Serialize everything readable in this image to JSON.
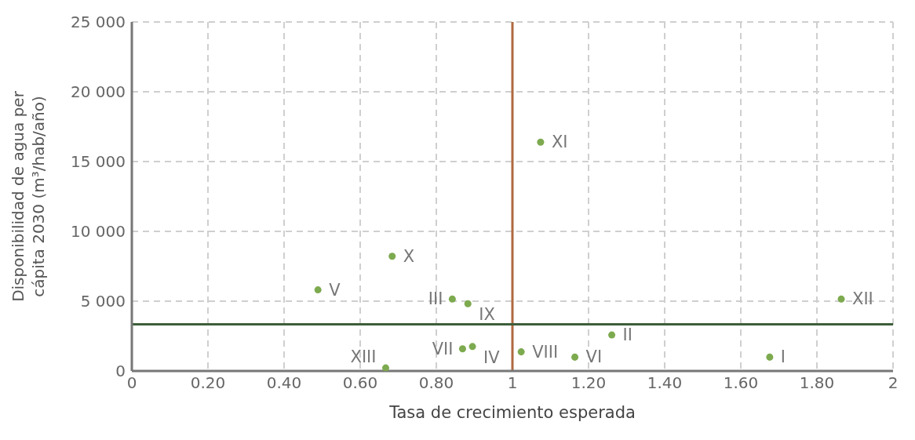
{
  "chart_data": {
    "type": "scatter",
    "xlabel": "Tasa de crecimiento esperada",
    "ylabel": "Disponibilidad de agua per cápita 2030 (m³/hab/año)",
    "x": [
      1.676,
      1.261,
      0.842,
      0.895,
      0.489,
      1.164,
      0.869,
      1.023,
      0.883,
      0.684,
      1.074,
      1.864,
      0.667
    ],
    "values": [
      990,
      2580,
      5150,
      1750,
      5810,
      990,
      1590,
      1370,
      4820,
      8220,
      16390,
      5150,
      220
    ],
    "color": "#7daa4f",
    "marker": "circle",
    "grid": true,
    "legend": false,
    "xlim": [
      0,
      2
    ],
    "xticks": [
      {
        "value": 0,
        "label": "0"
      },
      {
        "value": 0.2,
        "label": "0.20"
      },
      {
        "value": 0.4,
        "label": "0.40"
      },
      {
        "value": 0.6,
        "label": "0.60"
      },
      {
        "value": 0.8,
        "label": "0.80"
      },
      {
        "value": 1,
        "label": "1"
      },
      {
        "value": 1.2,
        "label": "1.20"
      },
      {
        "value": 1.4,
        "label": "1.40"
      },
      {
        "value": 1.6,
        "label": "1.60"
      },
      {
        "value": 1.8,
        "label": "1.80"
      },
      {
        "value": 2,
        "label": "2"
      }
    ],
    "ylim": [
      0,
      25000
    ],
    "yticks": [
      {
        "value": 0,
        "label": "0"
      },
      {
        "value": 5000,
        "label": "5 000"
      },
      {
        "value": 10000,
        "label": "10 000"
      },
      {
        "value": 15000,
        "label": "15 000"
      },
      {
        "value": 20000,
        "label": "20 000"
      },
      {
        "value": 25000,
        "label": "25 000"
      }
    ],
    "ref_lines": [
      {
        "axis": "x",
        "value": 1,
        "color": "#b0693f"
      },
      {
        "axis": "y",
        "value": 3340,
        "color": "#3d5e3a"
      }
    ],
    "annotations": [
      {
        "text": "I",
        "x": 1.676,
        "y": 990
      },
      {
        "text": "II",
        "x": 1.261,
        "y": 2580
      },
      {
        "text": "III",
        "x": 0.842,
        "y": 5150
      },
      {
        "text": "IV",
        "x": 0.895,
        "y": 1750
      },
      {
        "text": "V",
        "x": 0.489,
        "y": 5810
      },
      {
        "text": "VI",
        "x": 1.164,
        "y": 990
      },
      {
        "text": "VII",
        "x": 0.869,
        "y": 1590
      },
      {
        "text": "VIII",
        "x": 1.023,
        "y": 1370
      },
      {
        "text": "IX",
        "x": 0.883,
        "y": 4820
      },
      {
        "text": "X",
        "x": 0.684,
        "y": 8220
      },
      {
        "text": "XI",
        "x": 1.074,
        "y": 16390
      },
      {
        "text": "XII",
        "x": 1.864,
        "y": 5150
      },
      {
        "text": "XIII",
        "x": 0.667,
        "y": 220
      }
    ]
  }
}
